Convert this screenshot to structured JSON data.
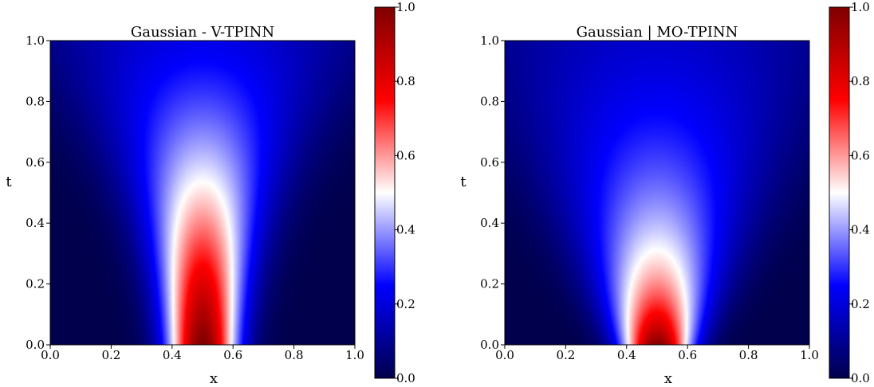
{
  "chart_data": [
    {
      "type": "heatmap",
      "title": "Gaussian - V-TPINN",
      "xlabel": "x",
      "ylabel": "t",
      "xlim": [
        0.0,
        1.0
      ],
      "ylim": [
        0.0,
        1.0
      ],
      "xticks": [
        "0.0",
        "0.2",
        "0.4",
        "0.6",
        "0.8",
        "1.0"
      ],
      "yticks": [
        "0.0",
        "0.2",
        "0.4",
        "0.6",
        "0.8",
        "1.0"
      ],
      "colormap": "seismic",
      "colorbar": {
        "range": [
          0.0,
          1.0
        ],
        "ticks": [
          "0.0",
          "0.2",
          "0.4",
          "0.6",
          "0.8",
          "1.0"
        ]
      },
      "field": {
        "form": "Gaussian pulse diffusing in t",
        "center_x": 0.5,
        "peak_value": 1.0,
        "value_at_t1_center": 0.22,
        "decay_rate": 3.8
      },
      "grid": false
    },
    {
      "type": "heatmap",
      "title": "Gaussian | MO-TPINN",
      "xlabel": "x",
      "ylabel": "t",
      "xlim": [
        0.0,
        1.0
      ],
      "ylim": [
        0.0,
        1.0
      ],
      "xticks": [
        "0.0",
        "0.2",
        "0.4",
        "0.6",
        "0.8",
        "1.0"
      ],
      "yticks": [
        "0.0",
        "0.2",
        "0.4",
        "0.6",
        "0.8",
        "1.0"
      ],
      "colormap": "seismic",
      "colorbar": {
        "range": [
          0.0,
          1.0
        ],
        "ticks": [
          "0.0",
          "0.2",
          "0.4",
          "0.6",
          "0.8",
          "1.0"
        ]
      },
      "field": {
        "form": "Gaussian pulse diffusing in t",
        "center_x": 0.5,
        "peak_value": 1.0,
        "value_at_t1_center": 0.18,
        "decay_rate": 2.6
      },
      "grid": false
    }
  ],
  "colors": {
    "seismic_low": "#00004c",
    "seismic_mid": "#ffffff",
    "seismic_high": "#7f0000",
    "axes": "#000000"
  }
}
